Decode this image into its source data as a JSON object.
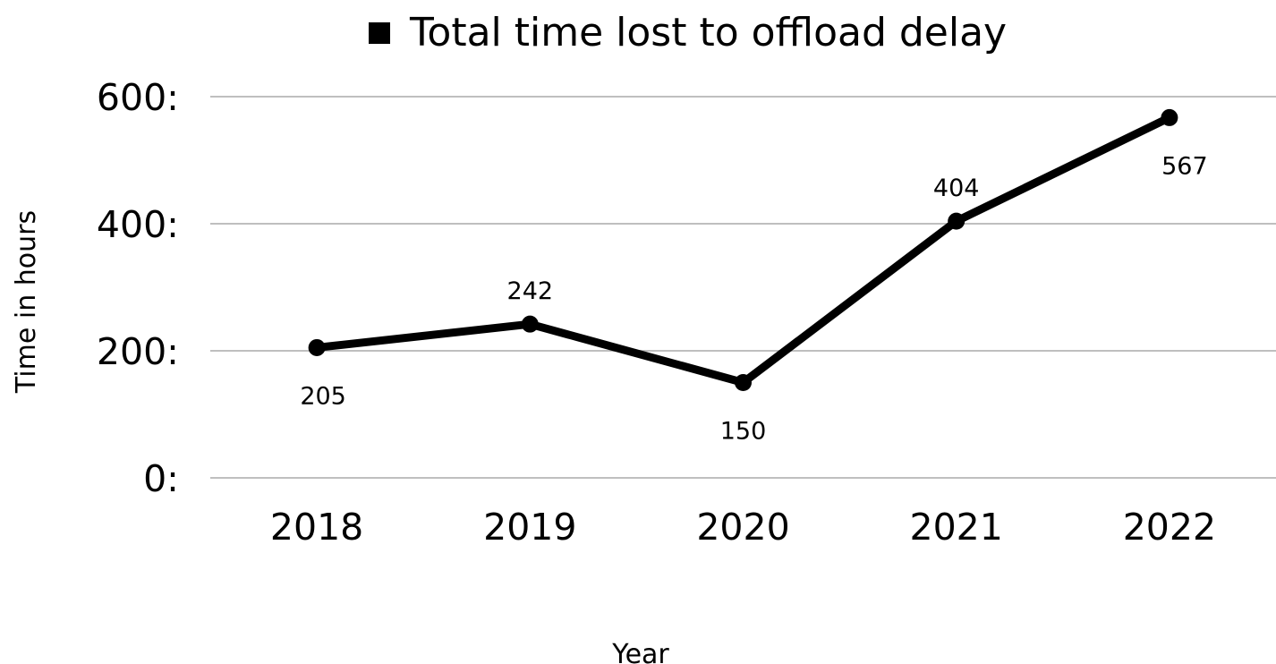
{
  "chart_data": {
    "type": "line",
    "title": "",
    "xlabel": "Year",
    "ylabel": "Time in hours",
    "categories": [
      "2018",
      "2019",
      "2020",
      "2021",
      "2022"
    ],
    "series": [
      {
        "name": "Total time lost to offload delay",
        "values": [
          205,
          242,
          150,
          404,
          567
        ],
        "data_labels": [
          "205",
          "242",
          "150",
          "404",
          "567"
        ]
      }
    ],
    "ylim": [
      0,
      600
    ],
    "yticks": [
      0,
      200,
      400,
      600
    ],
    "ytick_labels": [
      "0:",
      "200:",
      "400:",
      "600:"
    ],
    "grid": true,
    "legend": "top",
    "colors": {
      "line": "#000000",
      "grid": "#bfbfbf",
      "text": "#000000"
    }
  }
}
